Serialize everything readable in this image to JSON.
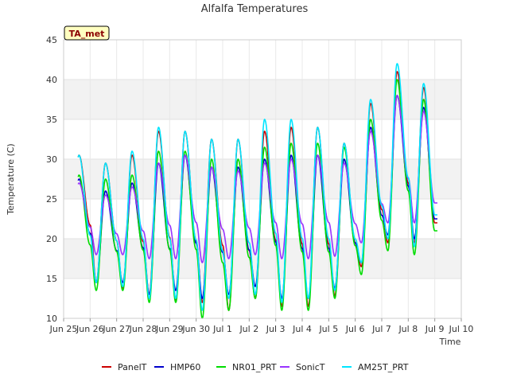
{
  "chart_data": {
    "type": "line",
    "title": "Alfalfa Temperatures",
    "xlabel": "Time",
    "ylabel": "Temperature (C)",
    "badge": "TA_met",
    "ylim": [
      10,
      45
    ],
    "yticks": [
      10,
      15,
      20,
      25,
      30,
      35,
      40,
      45
    ],
    "xlim": [
      0,
      15
    ],
    "xticks": [
      {
        "x": 0,
        "label": "Jun 25"
      },
      {
        "x": 1,
        "label": "Jun 26"
      },
      {
        "x": 2,
        "label": "Jun 27"
      },
      {
        "x": 3,
        "label": "Jun 28"
      },
      {
        "x": 4,
        "label": "Jun 29"
      },
      {
        "x": 5,
        "label": "Jun 30"
      },
      {
        "x": 6,
        "label": "Jul 1"
      },
      {
        "x": 7,
        "label": "Jul 2"
      },
      {
        "x": 8,
        "label": "Jul 3"
      },
      {
        "x": 9,
        "label": "Jul 4"
      },
      {
        "x": 10,
        "label": "Jul 5"
      },
      {
        "x": 11,
        "label": "Jul 6"
      },
      {
        "x": 12,
        "label": "Jul 7"
      },
      {
        "x": 13,
        "label": "Jul 8"
      },
      {
        "x": 14,
        "label": "Jul 9"
      },
      {
        "x": 15,
        "label": "Jul 10"
      }
    ],
    "x_units": "days since Jun 25 00:00",
    "background_bands": true,
    "legend_position": "bottom",
    "series": [
      {
        "name": "PanelT",
        "color": "#cc0000",
        "mins": [
          17.0,
          14.5,
          13.8,
          13.0,
          12.3,
          12.0,
          11.0,
          12.5,
          11.5,
          11.5,
          12.8,
          16.5,
          19.5,
          19.5
        ],
        "maxs": [
          30.5,
          29.5,
          30.5,
          33.5,
          33.5,
          32.5,
          32.5,
          33.5,
          34.0,
          34.0,
          32.0,
          37.0,
          41.0,
          39.0
        ],
        "end": 22.0
      },
      {
        "name": "HMP60",
        "color": "#0000cc",
        "mins": [
          17.0,
          14.5,
          14.5,
          13.0,
          13.5,
          12.5,
          13.0,
          14.0,
          12.5,
          12.5,
          13.8,
          17.0,
          20.5,
          20.0
        ],
        "maxs": [
          27.5,
          26.0,
          27.0,
          29.5,
          30.5,
          29.0,
          29.0,
          30.0,
          30.5,
          30.5,
          30.0,
          34.0,
          38.0,
          36.5
        ],
        "end": 22.5
      },
      {
        "name": "NR01_PRT",
        "color": "#00dd00",
        "mins": [
          14.5,
          13.5,
          13.5,
          12.0,
          12.0,
          10.0,
          11.0,
          12.5,
          11.0,
          11.0,
          12.5,
          15.5,
          18.5,
          18.0
        ],
        "maxs": [
          28.0,
          27.5,
          28.0,
          31.0,
          31.0,
          30.0,
          30.0,
          31.5,
          32.0,
          32.0,
          31.5,
          35.0,
          40.0,
          37.5
        ],
        "end": 21.0
      },
      {
        "name": "SonicT",
        "color": "#9933ff",
        "mins": [
          18.5,
          18.0,
          18.0,
          17.5,
          17.5,
          17.0,
          17.5,
          18.0,
          17.5,
          17.5,
          17.8,
          19.5,
          22.0,
          22.0
        ],
        "maxs": [
          27.0,
          25.5,
          26.5,
          29.5,
          30.5,
          29.0,
          28.5,
          29.5,
          30.0,
          30.5,
          29.5,
          33.5,
          38.0,
          36.0
        ],
        "end": 24.5,
        "start": 20.5
      },
      {
        "name": "AM25T_PRT",
        "color": "#00e5ff",
        "mins": [
          15.0,
          14.5,
          14.0,
          12.5,
          12.5,
          11.0,
          12.5,
          13.0,
          12.0,
          12.5,
          13.5,
          17.0,
          20.0,
          19.0
        ],
        "maxs": [
          30.5,
          29.5,
          31.0,
          34.0,
          33.5,
          32.5,
          32.5,
          35.0,
          35.0,
          34.0,
          32.0,
          37.5,
          42.0,
          39.5
        ],
        "end": 23.0
      }
    ]
  }
}
